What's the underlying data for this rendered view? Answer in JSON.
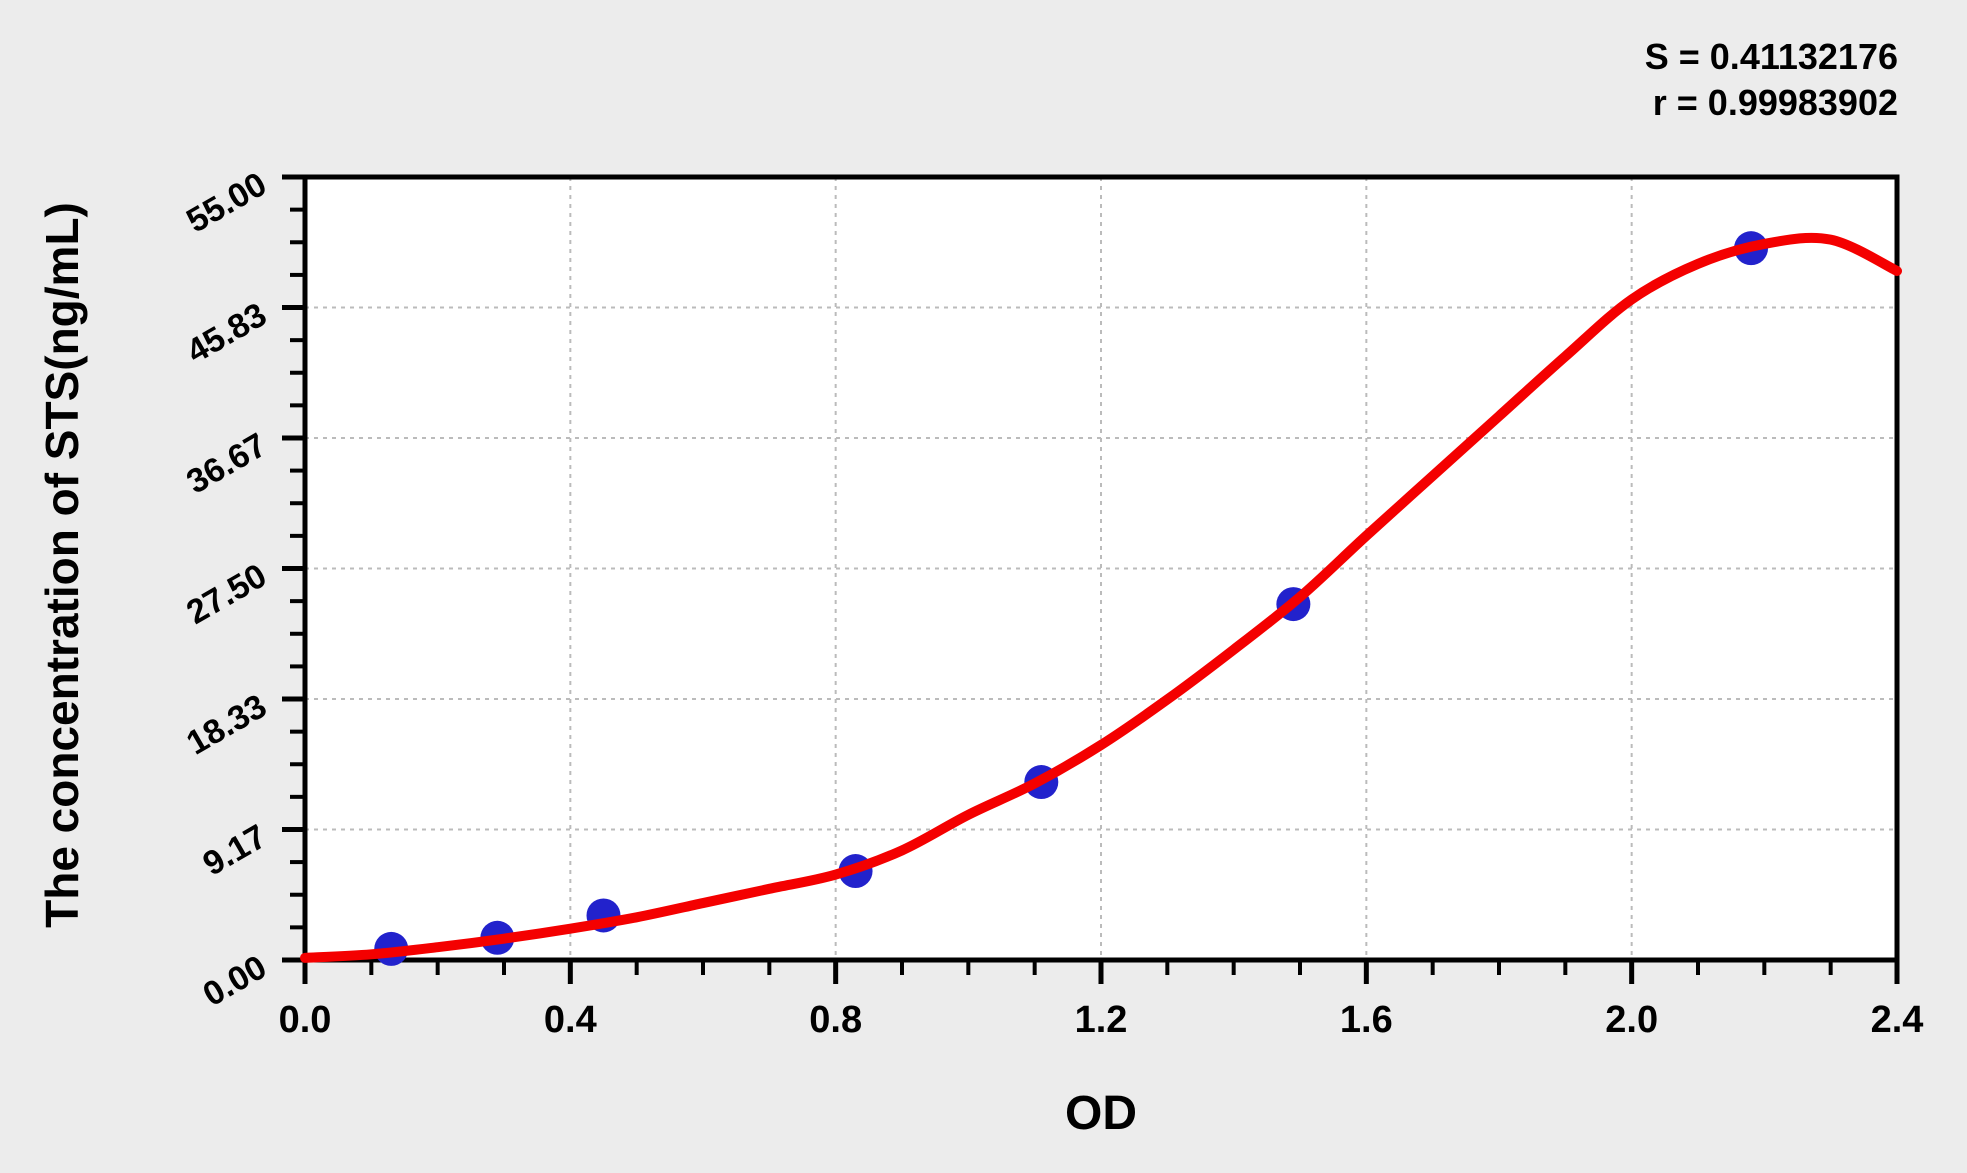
{
  "window": {
    "background_color": "#ececec",
    "plot_background_color": "#ffffff",
    "axis_color": "#000000",
    "grid_color": "#bbbbbb"
  },
  "annotations": {
    "s_line": "S = 0.41132176",
    "r_line": "r = 0.99983902"
  },
  "chart_data": {
    "type": "scatter",
    "title": "",
    "xlabel": "OD",
    "ylabel": "The concentration of STS(ng/mL)",
    "xlim": [
      0.0,
      2.4
    ],
    "ylim": [
      0.0,
      55.0
    ],
    "x_tick_values": [
      0.0,
      0.4,
      0.8,
      1.2,
      1.6,
      2.0,
      2.4
    ],
    "x_tick_labels": [
      "0.0",
      "0.4",
      "0.8",
      "1.2",
      "1.6",
      "2.0",
      "2.4"
    ],
    "y_tick_values": [
      0.0,
      9.17,
      18.33,
      27.5,
      36.67,
      45.83,
      55.0
    ],
    "y_tick_labels": [
      "0.00",
      "9.17",
      "18.33",
      "27.50",
      "36.67",
      "45.83",
      "55.00"
    ],
    "minor_ticks_between_majors": 3,
    "grid": {
      "style": "dashed",
      "color": "#bbbbbb",
      "position": "interior-major-ticks"
    },
    "legend": "none",
    "stats": {
      "S": "0.41132176",
      "r": "0.99983902"
    },
    "series": [
      {
        "name": "standard-points",
        "type": "scatter",
        "color": "#2222cc",
        "marker": "circle",
        "points": [
          [
            0.13,
            0.78
          ],
          [
            0.29,
            1.56
          ],
          [
            0.45,
            3.13
          ],
          [
            0.83,
            6.25
          ],
          [
            1.11,
            12.5
          ],
          [
            1.49,
            25.0
          ],
          [
            2.18,
            50.0
          ]
        ]
      },
      {
        "name": "fitted-curve",
        "type": "line",
        "color": "#f40000",
        "points": [
          [
            0.0,
            0.15
          ],
          [
            0.1,
            0.4
          ],
          [
            0.2,
            0.9
          ],
          [
            0.3,
            1.5
          ],
          [
            0.4,
            2.2
          ],
          [
            0.5,
            3.0
          ],
          [
            0.6,
            4.0
          ],
          [
            0.7,
            5.0
          ],
          [
            0.8,
            6.0
          ],
          [
            0.9,
            7.7
          ],
          [
            1.0,
            10.2
          ],
          [
            1.1,
            12.4
          ],
          [
            1.2,
            15.1
          ],
          [
            1.3,
            18.3
          ],
          [
            1.4,
            21.8
          ],
          [
            1.5,
            25.5
          ],
          [
            1.6,
            29.8
          ],
          [
            1.7,
            34.0
          ],
          [
            1.8,
            38.2
          ],
          [
            1.9,
            42.4
          ],
          [
            2.0,
            46.4
          ],
          [
            2.1,
            48.9
          ],
          [
            2.2,
            50.3
          ],
          [
            2.3,
            50.6
          ],
          [
            2.4,
            48.4
          ]
        ]
      }
    ]
  }
}
